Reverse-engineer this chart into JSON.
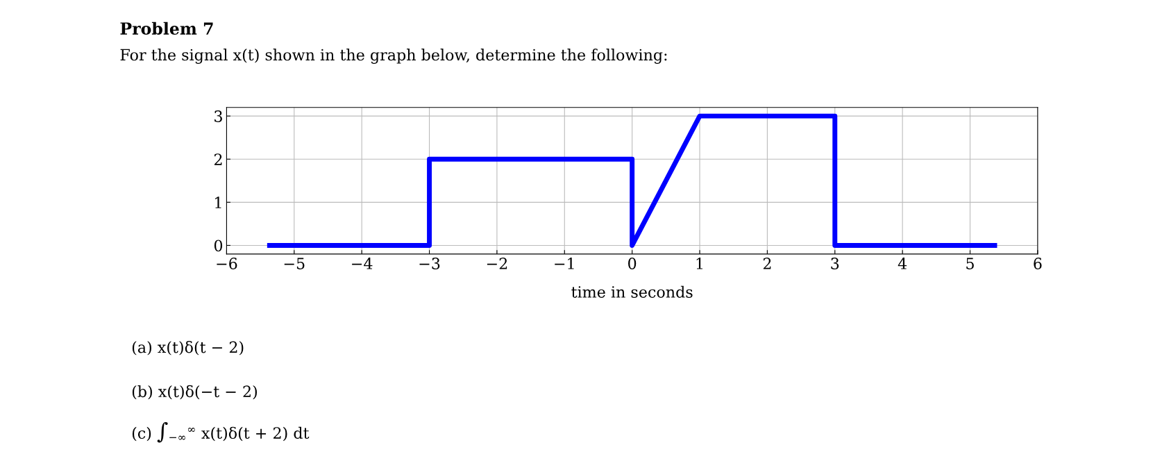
{
  "chart_data": {
    "type": "line",
    "title": "Problem 7",
    "subtitle": "For the signal x(t) shown in the graph below, determine the following:",
    "xlabel": "time in seconds",
    "x": [
      -5.4,
      -3,
      -3,
      0,
      0,
      1,
      3,
      3,
      5.4
    ],
    "series": [
      {
        "color": "#0000ff",
        "values": [
          0,
          0,
          2,
          2,
          0,
          3,
          3,
          0,
          0
        ]
      }
    ],
    "xlim": [
      -6,
      6
    ],
    "ylim": [
      -0.2,
      3.2
    ],
    "xticks": [
      -6,
      -5,
      -4,
      -3,
      -2,
      -1,
      0,
      1,
      2,
      3,
      4,
      5,
      6
    ],
    "yticks": [
      0,
      1,
      2,
      3
    ],
    "grid": true,
    "line_style": "solid",
    "annotations": [
      "(a) x(t)δ(t − 2)",
      "(b) x(t)δ(−t − 2)",
      "(c) ∫$_{−∞}$$^{∞}$ x(t)δ(t + 2) dt"
    ]
  }
}
